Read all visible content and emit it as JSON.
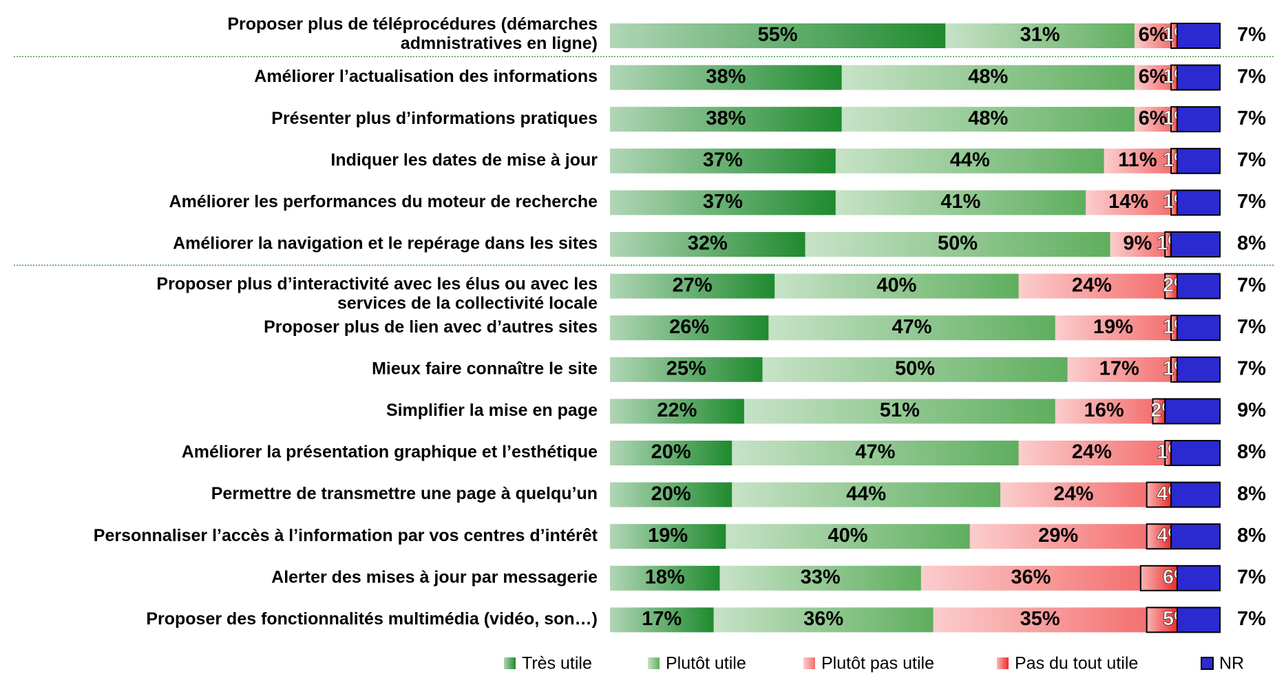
{
  "chart_data": {
    "type": "stacked_barh",
    "categories": [
      "Proposer plus de téléprocédures (démarches\nadmnistratives en ligne)",
      "Améliorer l’actualisation des informations",
      "Présenter plus d’informations pratiques",
      "Indiquer les dates de mise à jour",
      "Améliorer les performances du moteur de recherche",
      "Améliorer la navigation et le repérage dans les sites",
      "Proposer plus d’interactivité avec les élus ou avec les\nservices de la collectivité locale",
      "Proposer plus de lien avec d’autres sites",
      "Mieux faire connaître le site",
      "Simplifier la mise en page",
      "Améliorer la présentation graphique et l’esthétique",
      "Permettre de transmettre une page à quelqu’un",
      "Personnaliser l’accès à l’information par vos centres d’intérêt",
      "Alerter des mises à jour par messagerie",
      "Proposer des fonctionnalités multimédia (vidéo, son…)"
    ],
    "series": [
      {
        "name": "Très utile",
        "color": "#1f8a2e",
        "values": [
          55,
          38,
          38,
          37,
          37,
          32,
          27,
          26,
          25,
          22,
          20,
          20,
          19,
          18,
          17
        ],
        "value_labels": [
          "55%",
          "38%",
          "38%",
          "37%",
          "37%",
          "32%",
          "27%",
          "26%",
          "25%",
          "22%",
          "20%",
          "20%",
          "19%",
          "18%",
          "17%"
        ]
      },
      {
        "name": "Plutôt utile",
        "color": "#5fae5f",
        "values": [
          31,
          48,
          48,
          44,
          41,
          50,
          40,
          47,
          50,
          51,
          47,
          44,
          40,
          33,
          36
        ],
        "value_labels": [
          "31%",
          "48%",
          "48%",
          "44%",
          "41%",
          "50%",
          "40%",
          "47%",
          "50%",
          "51%",
          "47%",
          "44%",
          "40%",
          "33%",
          "36%"
        ]
      },
      {
        "name": "Plutôt pas utile",
        "color": "#f47070",
        "values": [
          6,
          6,
          6,
          11,
          14,
          9,
          24,
          19,
          17,
          16,
          24,
          24,
          29,
          36,
          35
        ],
        "value_labels": [
          "6%",
          "6%",
          "6%",
          "11%",
          "14%",
          "9%",
          "24%",
          "19%",
          "17%",
          "16%",
          "24%",
          "24%",
          "29%",
          "36%",
          "35%"
        ]
      },
      {
        "name": "Pas du tout utile",
        "color": "#ee2a2a",
        "values": [
          1,
          1,
          1,
          1,
          1,
          1,
          2,
          1,
          1,
          2,
          1,
          4,
          4,
          6,
          5
        ],
        "value_labels": [
          "1%",
          "1%",
          "1%",
          "1%",
          "1%",
          "1%",
          "2%",
          "1%",
          "1%",
          "2%",
          "1%",
          "4%",
          "4%",
          "6%",
          "5%"
        ]
      },
      {
        "name": "NR",
        "color": "#2a2ad0",
        "values": [
          7,
          7,
          7,
          7,
          7,
          8,
          7,
          7,
          7,
          9,
          8,
          8,
          8,
          7,
          7
        ],
        "value_labels": [
          "7%",
          "7%",
          "7%",
          "7%",
          "7%",
          "8%",
          "7%",
          "7%",
          "7%",
          "9%",
          "8%",
          "8%",
          "8%",
          "7%",
          "7%"
        ]
      }
    ],
    "xlim": [
      0,
      100
    ]
  }
}
